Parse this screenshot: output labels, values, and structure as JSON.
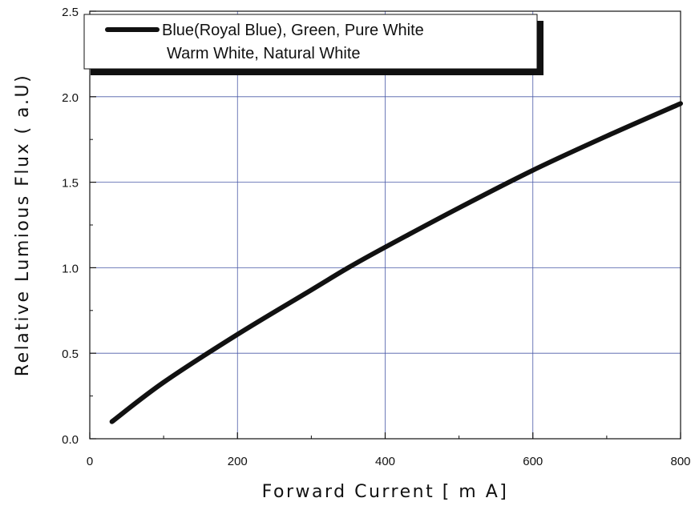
{
  "chart_data": {
    "type": "line",
    "xlabel": "Forward Current [ m A]",
    "ylabel": "Relative Lumious Flux ( a.U)",
    "xlim": [
      0,
      800
    ],
    "ylim": [
      0.0,
      2.5
    ],
    "x_ticks": [
      "0",
      "200",
      "400",
      "600",
      "800"
    ],
    "y_ticks": [
      "0.0",
      "0.5",
      "1.0",
      "1.5",
      "2.0",
      "2.5"
    ],
    "grid": true,
    "legend_position": "top-left",
    "legend": {
      "line1": "Blue(Royal Blue), Green, Pure White",
      "line2": "Warm White, Natural White"
    },
    "series": [
      {
        "name": "Blue(Royal Blue), Green, Pure White Warm White, Natural White",
        "color": "#111111",
        "x": [
          30,
          100,
          200,
          300,
          350,
          400,
          500,
          600,
          700,
          800
        ],
        "y": [
          0.1,
          0.33,
          0.61,
          0.87,
          1.0,
          1.12,
          1.35,
          1.57,
          1.77,
          1.96
        ]
      }
    ],
    "grid_color": "#4a5aa8"
  }
}
